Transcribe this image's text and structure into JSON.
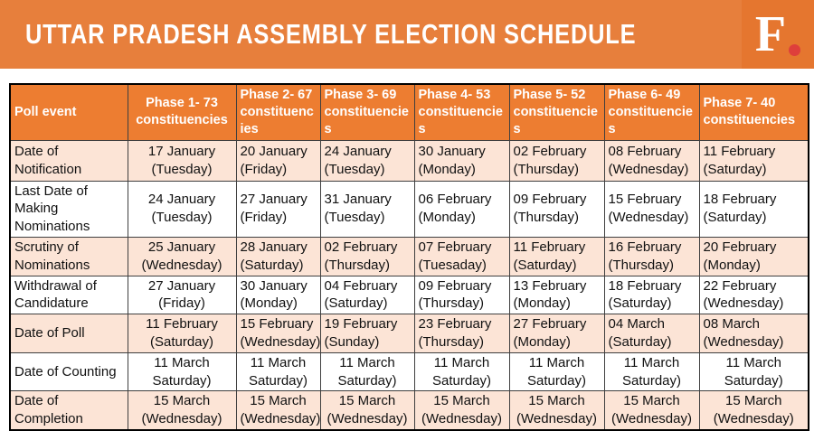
{
  "colors": {
    "banner_bg": "#E77F3C",
    "logo_bg": "#E5762F",
    "logo_red": "#DE3F3B",
    "header_bg": "#ED7D31",
    "row_shaded": "#FCE4D6"
  },
  "banner": {
    "title": "UTTAR PRADESH ASSEMBLY ELECTION SCHEDULE",
    "logo_f": "F"
  },
  "table": {
    "header": [
      "Poll event",
      "Phase 1- 73 constituencies",
      "Phase 2- 67 constituencies",
      "Phase 3- 69 constituencies",
      "Phase 4- 53 constituencies",
      "Phase 5- 52 constituencies",
      "Phase 6- 49 constituencies",
      "Phase 7- 40 constituencies"
    ],
    "header_align": [
      "left",
      "center",
      "left",
      "left",
      "left",
      "left",
      "left",
      "left"
    ],
    "rows": [
      {
        "event": "Date of Notification",
        "cells": [
          "17 January (Tuesday)",
          "20 January (Friday)",
          "24 January (Tuesday)",
          "30 January (Monday)",
          "02 February (Thursday)",
          "08 February (Wednesday)",
          "11 February (Saturday)"
        ],
        "cell_align": [
          "center",
          "left",
          "left",
          "left",
          "left",
          "left",
          "left"
        ],
        "shaded": true
      },
      {
        "event": "Last Date of Making Nominations",
        "cells": [
          "24 January (Tuesday)",
          "27 January (Friday)",
          "31 January (Tuesday)",
          "06 February (Monday)",
          "09 February (Thursday)",
          "15 February (Wednesday)",
          "18 February (Saturday)"
        ],
        "cell_align": [
          "center",
          "left",
          "left",
          "left",
          "left",
          "left",
          "left"
        ],
        "shaded": false
      },
      {
        "event": "Scrutiny of Nominations",
        "cells": [
          "25 January (Wednesday)",
          "28 January (Saturday)",
          "02 February (Thursday)",
          "07 February (Tuesaday)",
          "11 February (Saturday)",
          "16 February (Thursday)",
          "20 February (Monday)"
        ],
        "cell_align": [
          "center",
          "left",
          "left",
          "left",
          "left",
          "left",
          "left"
        ],
        "shaded": true
      },
      {
        "event": "Withdrawal of Candidature",
        "cells": [
          "27 January (Friday)",
          "30 January (Monday)",
          "04 February (Saturday)",
          "09 February (Thursday)",
          "13 February (Monday)",
          "18 February (Saturday)",
          "22 February (Wednesday)"
        ],
        "cell_align": [
          "center",
          "left",
          "left",
          "left",
          "left",
          "left",
          "left"
        ],
        "shaded": false
      },
      {
        "event": "Date of Poll",
        "cells": [
          "11 February (Saturday)",
          "15 February (Wednesday)",
          "19 February (Sunday)",
          "23 February (Thursday)",
          "27 February (Monday)",
          "04 March (Saturday)",
          "08 March (Wednesday)"
        ],
        "cell_align": [
          "center",
          "left",
          "left",
          "left",
          "left",
          "left",
          "left"
        ],
        "shaded": true
      },
      {
        "event": "Date of Counting",
        "cells": [
          "11 March Saturday)",
          "11 March Saturday)",
          "11 March Saturday)",
          "11 March Saturday)",
          "11 March Saturday)",
          "11 March Saturday)",
          "11 March Saturday)"
        ],
        "cell_align": [
          "center",
          "center",
          "center",
          "center",
          "center",
          "center",
          "center"
        ],
        "shaded": false
      },
      {
        "event": "Date of Completion",
        "cells": [
          "15 March (Wednesday)",
          "15 March (Wednesday)",
          "15 March (Wednesday)",
          "15 March (Wednesday)",
          "15 March (Wednesday)",
          "15 March (Wednesday)",
          "15 March (Wednesday)"
        ],
        "cell_align": [
          "center",
          "center",
          "center",
          "center",
          "center",
          "center",
          "center"
        ],
        "shaded": true
      }
    ]
  },
  "chart_data": {
    "type": "table",
    "title": "UTTAR PRADESH ASSEMBLY ELECTION SCHEDULE",
    "columns": [
      "Poll event",
      "Phase 1- 73 constituencies",
      "Phase 2- 67 constituencies",
      "Phase 3- 69 constituencies",
      "Phase 4- 53 constituencies",
      "Phase 5- 52 constituencies",
      "Phase 6- 49 constituencies",
      "Phase 7- 40 constituencies"
    ],
    "rows": [
      [
        "Date of Notification",
        "17 January (Tuesday)",
        "20 January (Friday)",
        "24 January (Tuesday)",
        "30 January (Monday)",
        "02 February (Thursday)",
        "08 February (Wednesday)",
        "11 February (Saturday)"
      ],
      [
        "Last Date of Making Nominations",
        "24 January (Tuesday)",
        "27 January (Friday)",
        "31 January (Tuesday)",
        "06 February (Monday)",
        "09 February (Thursday)",
        "15 February (Wednesday)",
        "18 February (Saturday)"
      ],
      [
        "Scrutiny of Nominations",
        "25 January (Wednesday)",
        "28 January (Saturday)",
        "02 February (Thursday)",
        "07 February (Tuesaday)",
        "11 February (Saturday)",
        "16 February (Thursday)",
        "20 February (Monday)"
      ],
      [
        "Withdrawal of Candidature",
        "27 January (Friday)",
        "30 January (Monday)",
        "04 February (Saturday)",
        "09 February (Thursday)",
        "13 February (Monday)",
        "18 February (Saturday)",
        "22 February (Wednesday)"
      ],
      [
        "Date of Poll",
        "11 February (Saturday)",
        "15 February (Wednesday)",
        "19 February (Sunday)",
        "23 February (Thursday)",
        "27 February (Monday)",
        "04 March (Saturday)",
        "08 March (Wednesday)"
      ],
      [
        "Date of Counting",
        "11 March Saturday)",
        "11 March Saturday)",
        "11 March Saturday)",
        "11 March Saturday)",
        "11 March Saturday)",
        "11 March Saturday)",
        "11 March Saturday)"
      ],
      [
        "Date of Completion",
        "15 March (Wednesday)",
        "15 March (Wednesday)",
        "15 March (Wednesday)",
        "15 March (Wednesday)",
        "15 March (Wednesday)",
        "15 March (Wednesday)",
        "15 March (Wednesday)"
      ]
    ]
  }
}
